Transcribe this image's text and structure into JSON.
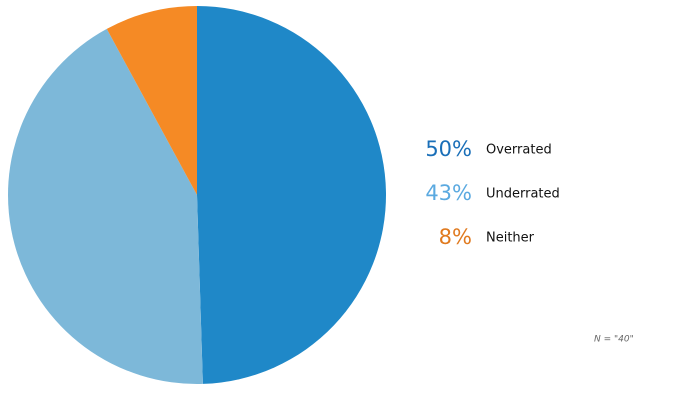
{
  "chart_data": {
    "type": "pie",
    "categories": [
      "Overrated",
      "Underrated",
      "Neither"
    ],
    "values": [
      50,
      43,
      8
    ],
    "value_labels": [
      "50%",
      "43%",
      "8%"
    ],
    "colors": [
      "#1f88c8",
      "#7db8d9",
      "#f58a25"
    ],
    "label_colors": [
      "#1a6fb8",
      "#5aa9e0",
      "#e07a1f"
    ],
    "note": "N = \"40\""
  }
}
